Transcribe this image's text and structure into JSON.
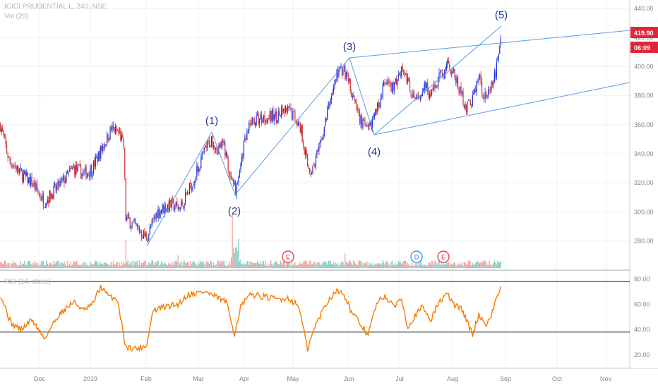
{
  "legend": {
    "symbol": "ICICI PRUDENTIAL L, 240, NSE",
    "volume": "Vol (20)",
    "rsi": "RSI (14, close)"
  },
  "price_badge": {
    "price": "419.90",
    "countdown": "06:09",
    "color": "#e0263a"
  },
  "colors": {
    "up": "#1c2fd6",
    "down": "#d0303a",
    "line": "#5b9be0",
    "rsi": "#f57c00",
    "vol_up": "#86cdc4",
    "vol_down": "#f4a3a3"
  },
  "chart_data": [
    {
      "type": "candlestick",
      "y_ticks": [
        280,
        300,
        320,
        340,
        360,
        380,
        400,
        420,
        440
      ],
      "y_tick_labels": [
        "280.00",
        "300.00",
        "320.00",
        "340.00",
        "360.00",
        "380.00",
        "400.00",
        "420.00",
        "440.00"
      ],
      "ylim": [
        271,
        442
      ],
      "x_labels": [
        "Dec",
        "2019",
        "Feb",
        "Mar",
        "Apr",
        "May",
        "Jun",
        "Jul",
        "Aug",
        "Sep",
        "Oct",
        "Nov"
      ],
      "close_path": [
        {
          "t": 0,
          "v": 360
        },
        {
          "t": 8,
          "v": 336
        },
        {
          "t": 20,
          "v": 326
        },
        {
          "t": 30,
          "v": 320
        },
        {
          "t": 42,
          "v": 307
        },
        {
          "t": 56,
          "v": 318
        },
        {
          "t": 70,
          "v": 330
        },
        {
          "t": 80,
          "v": 326
        },
        {
          "t": 88,
          "v": 330
        },
        {
          "t": 98,
          "v": 345
        },
        {
          "t": 106,
          "v": 357
        },
        {
          "t": 114,
          "v": 354
        },
        {
          "t": 118,
          "v": 345
        },
        {
          "t": 120,
          "v": 296
        },
        {
          "t": 132,
          "v": 288
        },
        {
          "t": 140,
          "v": 282
        },
        {
          "t": 150,
          "v": 300
        },
        {
          "t": 162,
          "v": 305
        },
        {
          "t": 172,
          "v": 303
        },
        {
          "t": 184,
          "v": 320
        },
        {
          "t": 196,
          "v": 343
        },
        {
          "t": 202,
          "v": 350
        },
        {
          "t": 208,
          "v": 344
        },
        {
          "t": 214,
          "v": 346
        },
        {
          "t": 222,
          "v": 317
        },
        {
          "t": 226,
          "v": 316
        },
        {
          "t": 232,
          "v": 342
        },
        {
          "t": 240,
          "v": 362
        },
        {
          "t": 252,
          "v": 365
        },
        {
          "t": 264,
          "v": 366
        },
        {
          "t": 276,
          "v": 370
        },
        {
          "t": 282,
          "v": 366
        },
        {
          "t": 288,
          "v": 356
        },
        {
          "t": 294,
          "v": 332
        },
        {
          "t": 298,
          "v": 328
        },
        {
          "t": 306,
          "v": 345
        },
        {
          "t": 314,
          "v": 372
        },
        {
          "t": 322,
          "v": 395
        },
        {
          "t": 328,
          "v": 398
        },
        {
          "t": 334,
          "v": 388
        },
        {
          "t": 340,
          "v": 372
        },
        {
          "t": 346,
          "v": 362
        },
        {
          "t": 352,
          "v": 355
        },
        {
          "t": 360,
          "v": 370
        },
        {
          "t": 368,
          "v": 388
        },
        {
          "t": 376,
          "v": 385
        },
        {
          "t": 384,
          "v": 400
        },
        {
          "t": 392,
          "v": 386
        },
        {
          "t": 398,
          "v": 375
        },
        {
          "t": 406,
          "v": 390
        },
        {
          "t": 412,
          "v": 380
        },
        {
          "t": 420,
          "v": 392
        },
        {
          "t": 428,
          "v": 403
        },
        {
          "t": 434,
          "v": 395
        },
        {
          "t": 440,
          "v": 383
        },
        {
          "t": 446,
          "v": 372
        },
        {
          "t": 452,
          "v": 378
        },
        {
          "t": 458,
          "v": 393
        },
        {
          "t": 462,
          "v": 382
        },
        {
          "t": 468,
          "v": 380
        },
        {
          "t": 474,
          "v": 396
        },
        {
          "t": 479,
          "v": 420
        }
      ],
      "annotations": [
        "(1)",
        "(2)",
        "(3)",
        "(4)",
        "(5)"
      ],
      "events": [
        "E",
        "D",
        "E"
      ]
    },
    {
      "type": "line",
      "series": [
        {
          "name": "RSI (14, close)"
        }
      ],
      "y_ticks": [
        20,
        40,
        60,
        80
      ],
      "y_tick_labels": [
        "20.00",
        "40.00",
        "60.00",
        "80.00"
      ],
      "ylim": [
        15,
        82
      ],
      "levels": [
        78,
        38
      ],
      "rsi_path": [
        {
          "t": 0,
          "v": 68
        },
        {
          "t": 10,
          "v": 45
        },
        {
          "t": 20,
          "v": 40
        },
        {
          "t": 30,
          "v": 48
        },
        {
          "t": 42,
          "v": 33
        },
        {
          "t": 56,
          "v": 52
        },
        {
          "t": 70,
          "v": 62
        },
        {
          "t": 80,
          "v": 55
        },
        {
          "t": 88,
          "v": 60
        },
        {
          "t": 96,
          "v": 74
        },
        {
          "t": 104,
          "v": 66
        },
        {
          "t": 112,
          "v": 64
        },
        {
          "t": 120,
          "v": 26
        },
        {
          "t": 132,
          "v": 25
        },
        {
          "t": 140,
          "v": 28
        },
        {
          "t": 146,
          "v": 55
        },
        {
          "t": 158,
          "v": 58
        },
        {
          "t": 170,
          "v": 60
        },
        {
          "t": 180,
          "v": 68
        },
        {
          "t": 196,
          "v": 70
        },
        {
          "t": 208,
          "v": 65
        },
        {
          "t": 216,
          "v": 62
        },
        {
          "t": 224,
          "v": 37
        },
        {
          "t": 230,
          "v": 58
        },
        {
          "t": 240,
          "v": 68
        },
        {
          "t": 252,
          "v": 66
        },
        {
          "t": 264,
          "v": 64
        },
        {
          "t": 276,
          "v": 65
        },
        {
          "t": 286,
          "v": 58
        },
        {
          "t": 294,
          "v": 24
        },
        {
          "t": 300,
          "v": 40
        },
        {
          "t": 310,
          "v": 58
        },
        {
          "t": 320,
          "v": 70
        },
        {
          "t": 328,
          "v": 70
        },
        {
          "t": 336,
          "v": 54
        },
        {
          "t": 344,
          "v": 45
        },
        {
          "t": 352,
          "v": 36
        },
        {
          "t": 360,
          "v": 60
        },
        {
          "t": 368,
          "v": 67
        },
        {
          "t": 376,
          "v": 58
        },
        {
          "t": 384,
          "v": 65
        },
        {
          "t": 390,
          "v": 42
        },
        {
          "t": 396,
          "v": 50
        },
        {
          "t": 404,
          "v": 58
        },
        {
          "t": 412,
          "v": 48
        },
        {
          "t": 420,
          "v": 62
        },
        {
          "t": 428,
          "v": 68
        },
        {
          "t": 434,
          "v": 60
        },
        {
          "t": 442,
          "v": 56
        },
        {
          "t": 448,
          "v": 44
        },
        {
          "t": 452,
          "v": 36
        },
        {
          "t": 458,
          "v": 52
        },
        {
          "t": 464,
          "v": 44
        },
        {
          "t": 470,
          "v": 50
        },
        {
          "t": 474,
          "v": 64
        },
        {
          "t": 479,
          "v": 72
        }
      ]
    }
  ]
}
